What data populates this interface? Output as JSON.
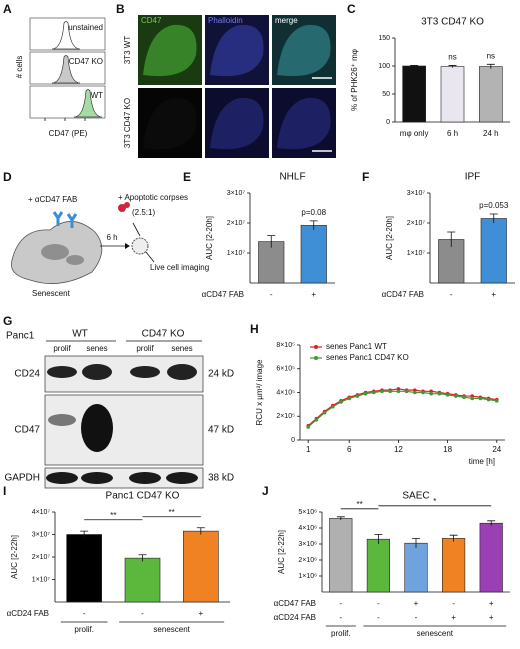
{
  "panel_letters": [
    "A",
    "B",
    "C",
    "D",
    "E",
    "F",
    "G",
    "H",
    "I",
    "J"
  ],
  "flow_cytometry": {
    "samples": [
      "unstained",
      "CD47 KO",
      "WT"
    ],
    "xlabel": "CD47 (PE)",
    "ylabel": "# cells"
  },
  "microscopy": {
    "channels": [
      "CD47",
      "Phalloidin",
      "merge"
    ],
    "rows": [
      "3T3 WT",
      "3T3 CD47 KO"
    ]
  },
  "schematic": {
    "treatment": "+ αCD47 FAB",
    "time": "6 h",
    "corpses": "+ Apoptotic corpses",
    "ratio": "(2.5:1)",
    "readout": "Live cell imaging",
    "cell": "Senescent"
  },
  "western_blot": {
    "cell_line": "Panc1",
    "genotypes": [
      "WT",
      "CD47 KO"
    ],
    "lanes": [
      "prolif",
      "senes",
      "prolif",
      "senes"
    ],
    "proteins": [
      "CD24",
      "CD47",
      "GAPDH"
    ],
    "sizes": [
      "24 kD",
      "47 kD",
      "38 kD"
    ]
  },
  "chart_data": [
    {
      "type": "bar",
      "title": "3T3 CD47 KO",
      "ylabel": "% of PHK26⁺ mφ",
      "categories": [
        "mφ only",
        "6 h",
        "24 h"
      ],
      "values": [
        100,
        99,
        99
      ],
      "errors": [
        1,
        2,
        4
      ],
      "colors": [
        "#111111",
        "#e9e6f0",
        "#b3b3b3"
      ],
      "ylim": [
        0,
        150
      ],
      "yticks": [
        0,
        50,
        100,
        150
      ],
      "annotations": [
        {
          "text": "ns",
          "category": 1
        },
        {
          "text": "ns",
          "category": 2
        }
      ]
    },
    {
      "type": "bar",
      "title": "NHLF",
      "ylabel": "AUC [2-20h]",
      "xlabel": "αCD47 FAB",
      "categories": [
        "-",
        "+"
      ],
      "values": [
        13800000,
        19200000
      ],
      "errors": [
        2000000,
        1500000
      ],
      "colors": [
        "#8c8c8c",
        "#3f8fd6"
      ],
      "ylim": [
        0,
        30000000
      ],
      "yticks": [
        {
          "value": 10000000,
          "label": "1×10⁷"
        },
        {
          "value": 20000000,
          "label": "2×10⁷"
        },
        {
          "value": 30000000,
          "label": "3×10⁷"
        }
      ],
      "annotations": [
        {
          "text": "p=0.08",
          "category": 1
        }
      ]
    },
    {
      "type": "bar",
      "title": "IPF",
      "ylabel": "AUC [2-20h]",
      "xlabel": "αCD47 FAB",
      "categories": [
        "-",
        "+"
      ],
      "values": [
        14500000,
        21500000
      ],
      "errors": [
        2500000,
        1500000
      ],
      "colors": [
        "#8c8c8c",
        "#3f8fd6"
      ],
      "ylim": [
        0,
        30000000
      ],
      "yticks": [
        {
          "value": 10000000,
          "label": "1×10⁷"
        },
        {
          "value": 20000000,
          "label": "2×10⁷"
        },
        {
          "value": 30000000,
          "label": "3×10⁷"
        }
      ],
      "annotations": [
        {
          "text": "p=0.053",
          "category": 1
        }
      ]
    },
    {
      "type": "line",
      "ylabel": "RCU x µm²/ image",
      "xlabel": "time [h]",
      "x": [
        1,
        2,
        3,
        4,
        5,
        6,
        7,
        8,
        9,
        10,
        11,
        12,
        13,
        14,
        15,
        16,
        17,
        18,
        19,
        20,
        21,
        22,
        23,
        24
      ],
      "series": [
        {
          "name": "senes Panc1 WT",
          "color": "#e02020",
          "values": [
            120000,
            180000,
            240000,
            290000,
            330000,
            360000,
            380000,
            400000,
            410000,
            420000,
            420000,
            430000,
            420000,
            420000,
            410000,
            410000,
            400000,
            390000,
            380000,
            370000,
            370000,
            360000,
            350000,
            340000
          ]
        },
        {
          "name": "senes Panc1 CD47 KO",
          "color": "#3c9a3c",
          "values": [
            110000,
            170000,
            230000,
            280000,
            320000,
            350000,
            370000,
            390000,
            400000,
            410000,
            410000,
            410000,
            410000,
            400000,
            400000,
            390000,
            390000,
            380000,
            370000,
            360000,
            350000,
            350000,
            340000,
            330000
          ]
        }
      ],
      "xlim": [
        0,
        25
      ],
      "xticks": [
        1,
        6,
        12,
        18,
        24
      ],
      "ylim": [
        0,
        800000
      ],
      "yticks": [
        0,
        {
          "value": 200000,
          "label": "2×10⁵"
        },
        {
          "value": 400000,
          "label": "4×10⁵"
        },
        {
          "value": 600000,
          "label": "6×10⁵"
        },
        {
          "value": 800000,
          "label": "8×10⁵"
        }
      ],
      "legend": "upper left"
    },
    {
      "type": "bar",
      "title": "Panc1 CD47 KO",
      "ylabel": "AUC [2-22h]",
      "rows": [
        {
          "name": "αCD24 FAB",
          "values": [
            "-",
            "-",
            "+"
          ]
        }
      ],
      "groups": [
        {
          "label": "prolif.",
          "first": 0,
          "last": 0
        },
        {
          "label": "senescent",
          "first": 1,
          "last": 2
        }
      ],
      "values": [
        30000000,
        19500000,
        31500000
      ],
      "errors": [
        1500000,
        1500000,
        1500000
      ],
      "colors": [
        "#000000",
        "#5cb83c",
        "#f08224"
      ],
      "ylim": [
        0,
        40000000
      ],
      "yticks": [
        {
          "value": 10000000,
          "label": "1×10⁷"
        },
        {
          "value": 20000000,
          "label": "2×10⁷"
        },
        {
          "value": 30000000,
          "label": "3×10⁷"
        },
        {
          "value": 40000000,
          "label": "4×10⁷"
        }
      ],
      "comparisons": [
        {
          "text": "**",
          "from": 0,
          "to": 1
        },
        {
          "text": "**",
          "from": 1,
          "to": 2
        }
      ]
    },
    {
      "type": "bar",
      "title": "SAEC",
      "ylabel": "AUC [2-22h]",
      "rows": [
        {
          "name": "αCD47 FAB",
          "values": [
            "-",
            "-",
            "+",
            "-",
            "+"
          ]
        },
        {
          "name": "αCD24 FAB",
          "values": [
            "-",
            "-",
            "-",
            "+",
            "+"
          ]
        }
      ],
      "groups": [
        {
          "label": "prolif.",
          "first": 0,
          "last": 0
        },
        {
          "label": "senescent",
          "first": 1,
          "last": 4
        }
      ],
      "values": [
        4600000,
        3300000,
        3050000,
        3350000,
        4300000
      ],
      "errors": [
        100000,
        300000,
        300000,
        200000,
        150000
      ],
      "colors": [
        "#b0b0b0",
        "#5cb83c",
        "#6fa3dd",
        "#f08224",
        "#9b3fb5"
      ],
      "ylim": [
        0,
        5000000
      ],
      "yticks": [
        {
          "value": 1000000,
          "label": "1×10⁶"
        },
        {
          "value": 2000000,
          "label": "2×10⁶"
        },
        {
          "value": 3000000,
          "label": "3×10⁶"
        },
        {
          "value": 4000000,
          "label": "4×10⁶"
        },
        {
          "value": 5000000,
          "label": "5×10⁶"
        }
      ],
      "comparisons": [
        {
          "text": "**",
          "from": 0,
          "to": 1
        },
        {
          "text": "*",
          "from": 1,
          "to": 4
        }
      ]
    }
  ]
}
